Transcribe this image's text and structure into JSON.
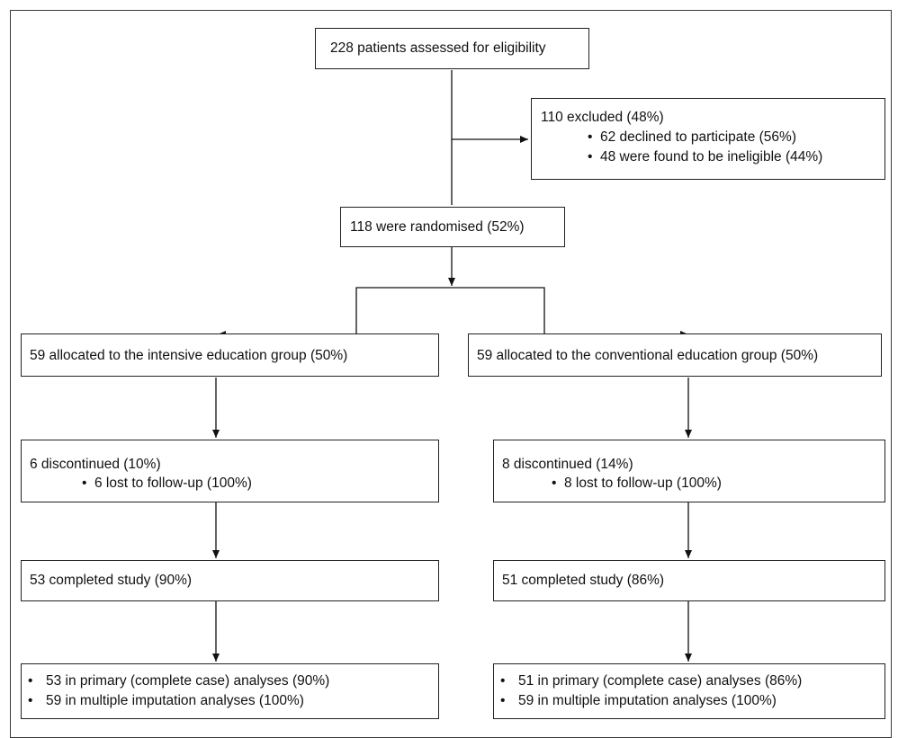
{
  "top": {
    "assessed": "228 patients assessed for eligibility"
  },
  "excluded": {
    "title": "110 excluded (48%)",
    "items": [
      "62 declined to participate (56%)",
      "48 were found to be ineligible (44%)"
    ]
  },
  "randomised": "118 were randomised (52%)",
  "left": {
    "allocated": "59 allocated to the intensive education group (50%)",
    "discontinued_title": "6 discontinued (10%)",
    "discontinued_item": "6 lost to follow-up (100%)",
    "completed": "53 completed study (90%)",
    "analyses": [
      "53 in primary (complete case) analyses (90%)",
      "59 in multiple imputation analyses (100%)"
    ]
  },
  "right": {
    "allocated": "59 allocated to the conventional education group (50%)",
    "discontinued_title": "8 discontinued (14%)",
    "discontinued_item": "8 lost to follow-up (100%)",
    "completed": "51 completed study (86%)",
    "analyses": [
      "51 in primary (complete case) analyses (86%)",
      "59 in multiple imputation analyses (100%)"
    ]
  },
  "bullet_glyph": "•"
}
